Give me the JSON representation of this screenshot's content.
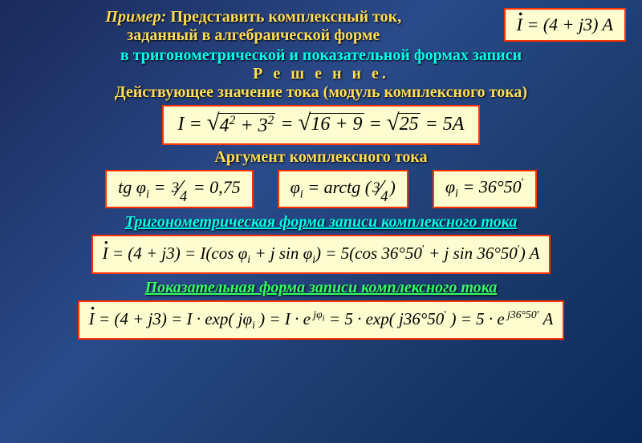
{
  "header": {
    "example_word": "Пример:",
    "line1": "Представить комплексный ток,",
    "line2": "заданный в алгебраической форме"
  },
  "given_formula": "İ = (4 + j3) A",
  "sub_header": "в тригонометрической и показательной формах записи",
  "solution_word": "Р е ш е н и е.",
  "modulus_title": "Действующее значение тока (модуль комплексного тока)",
  "modulus_formula": {
    "text": "I = √(4² + 3²) = √(16+9) = √25 = 5A"
  },
  "argument_title": "Аргумент комплексного тока",
  "arg_formulas": {
    "f1": "tg φᵢ = 3/4 = 0,75",
    "f2": "φᵢ = arctg (3/4)",
    "f3": "φᵢ = 36°50′"
  },
  "trig_title": "Тригонометрическая форма записи комплексного тока",
  "trig_formula": "İ = (4 + j3) = I(cos φᵢ + j sin φᵢ) = 5(cos 36°50′ + j sin 36°50′) A",
  "exp_title": "Показательная форма записи комплексного тока",
  "exp_formula": "İ = (4 + j3) = I · exp(jφᵢ) = I · e^(jφᵢ) = 5 · exp(j36°50′) = 5 · e^(j36°50′) A",
  "colors": {
    "bg_grad_start": "#1a2a5a",
    "bg_grad_mid": "#2a4a8a",
    "yellow": "#ffdd55",
    "cyan": "#00ffee",
    "green": "#33ff66",
    "box_bg": "#fffdd0",
    "box_border": "#ff3300"
  }
}
